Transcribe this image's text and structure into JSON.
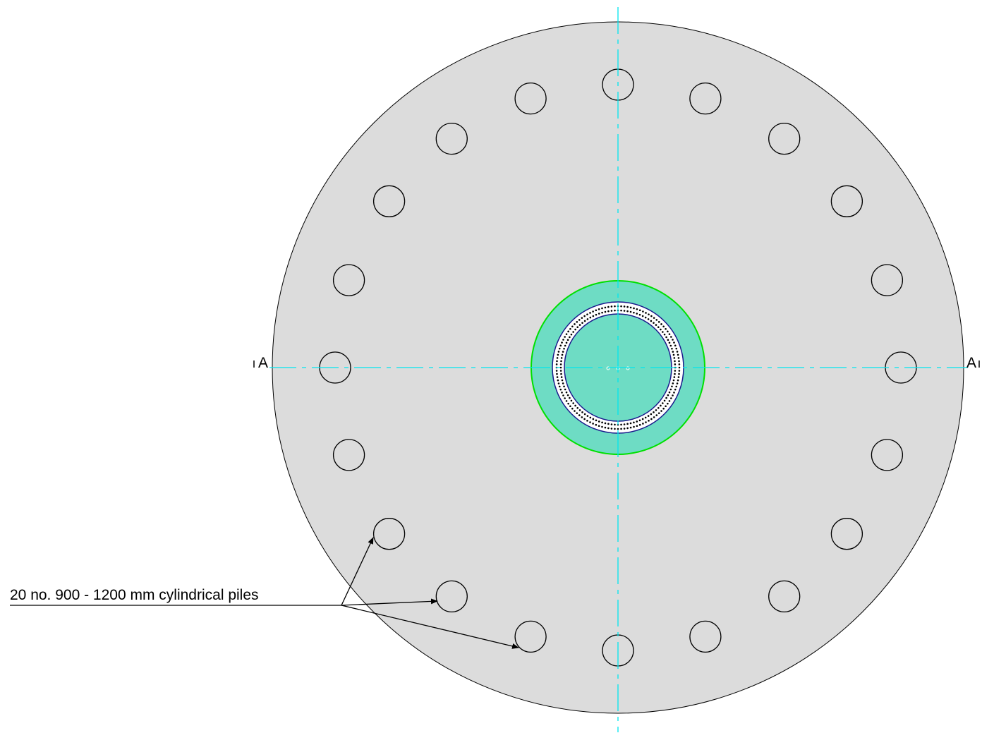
{
  "drawing": {
    "pile_label": "20 no. 900 - 1200 mm cylindrical piles",
    "pile_count": 20,
    "section_marker_left": "A",
    "section_marker_right": "A"
  },
  "colors": {
    "foundation_fill": "#dcdcdc",
    "outline": "#000000",
    "centerline": "#00e5ee",
    "pedestal_fill": "#6edcc4",
    "pedestal_outline": "#00e000",
    "anchor_ring_outline": "#1a1a8c",
    "anchor_bolt_dots": "#000000",
    "background": "#ffffff"
  },
  "icons": {
    "pile": "pile-circle-icon",
    "leader_arrow": "arrowhead-icon",
    "section_mark": "section-cut-marker-icon"
  }
}
